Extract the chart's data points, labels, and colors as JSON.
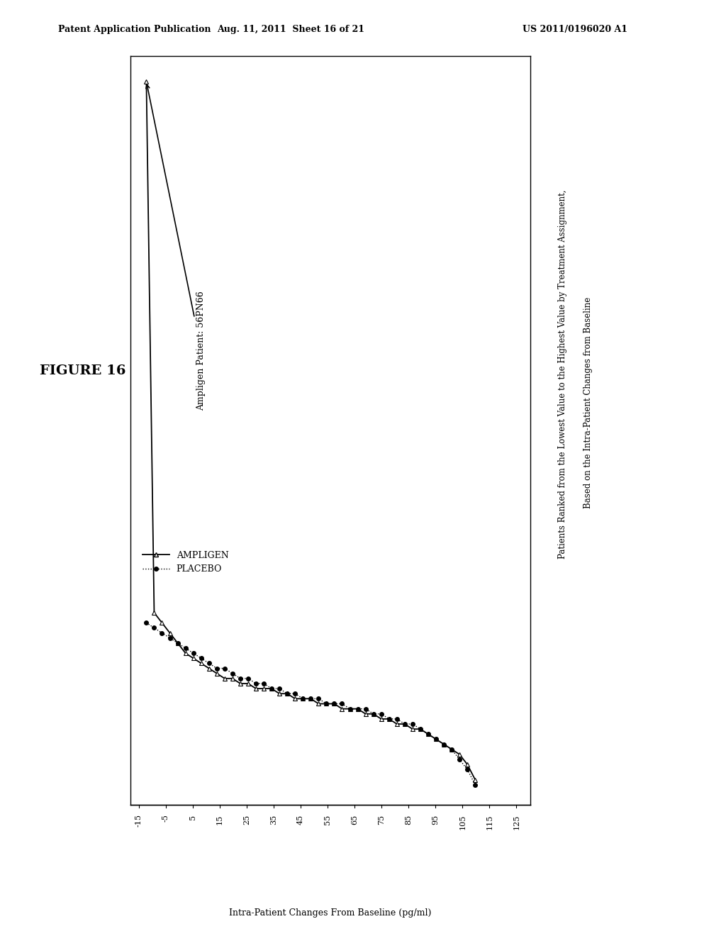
{
  "header_left": "Patent Application Publication",
  "header_mid": "Aug. 11, 2011  Sheet 16 of 21",
  "header_right": "US 2011/0196020 A1",
  "figure_label": "FIGURE 16",
  "ylabel_rotated": "Intra-Patient Changes From Baseline (pg/ml)",
  "right_title_line1": "Patients Ranked from the Lowest Value to the Highest Value by Treatment Assignment,",
  "right_title_line2": "Based on the Intra-Patient Changes from Baseline",
  "annotation_text": "Ampligen Patient: 56PN66",
  "legend_ampligen": "AMPLIGEN",
  "legend_placebo": "PLACEBO",
  "yticks": [
    125,
    115,
    105,
    95,
    85,
    75,
    65,
    55,
    45,
    35,
    25,
    15,
    5,
    -5,
    -15
  ],
  "xlim": [
    -1,
    50
  ],
  "ylim": [
    -18,
    130
  ],
  "ampligen_x": [
    1,
    2,
    3,
    4,
    5,
    6,
    7,
    8,
    9,
    10,
    11,
    12,
    13,
    14,
    15,
    16,
    17,
    18,
    19,
    20,
    21,
    22,
    23,
    24,
    25,
    26,
    27,
    28,
    29,
    30,
    31,
    32,
    33,
    34,
    35,
    36,
    37,
    38,
    39,
    40,
    41,
    42,
    43
  ],
  "ampligen_y": [
    125,
    20,
    18,
    16,
    14,
    12,
    11,
    10,
    9,
    8,
    7,
    7,
    6,
    6,
    5,
    5,
    5,
    4,
    4,
    3,
    3,
    3,
    2,
    2,
    2,
    1,
    1,
    1,
    0,
    0,
    -1,
    -1,
    -2,
    -2,
    -3,
    -3,
    -4,
    -5,
    -6,
    -7,
    -8,
    -10,
    -13
  ],
  "placebo_x": [
    1,
    2,
    3,
    4,
    5,
    6,
    7,
    8,
    9,
    10,
    11,
    12,
    13,
    14,
    15,
    16,
    17,
    18,
    19,
    20,
    21,
    22,
    23,
    24,
    25,
    26,
    27,
    28,
    29,
    30,
    31,
    32,
    33,
    34,
    35,
    36,
    37,
    38,
    39,
    40,
    41,
    42,
    43
  ],
  "placebo_y": [
    18,
    17,
    16,
    15,
    14,
    13,
    12,
    11,
    10,
    9,
    9,
    8,
    7,
    7,
    6,
    6,
    5,
    5,
    4,
    4,
    3,
    3,
    3,
    2,
    2,
    2,
    1,
    1,
    1,
    0,
    0,
    -1,
    -1,
    -2,
    -2,
    -3,
    -4,
    -5,
    -6,
    -7,
    -9,
    -11,
    -14
  ],
  "annotation_rank": 1,
  "annotation_value": 125
}
